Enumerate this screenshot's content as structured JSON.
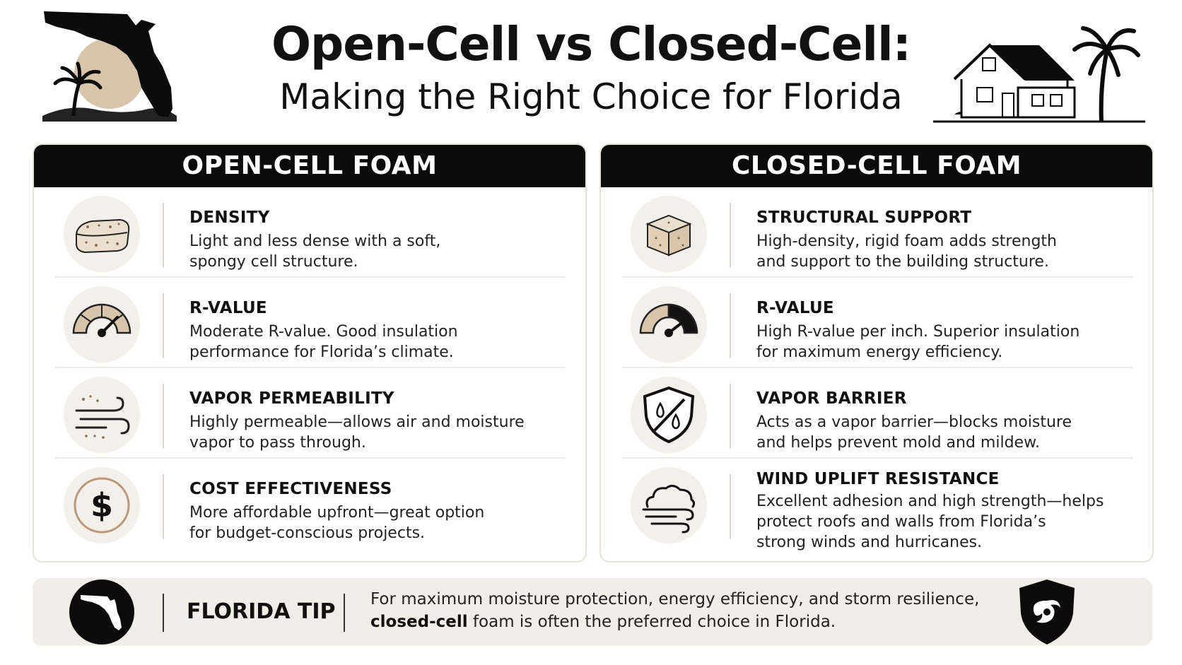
{
  "header": {
    "title": "Open-Cell vs Closed-Cell:",
    "subtitle": "Making the Right Choice for Florida"
  },
  "open_cell": {
    "heading": "OPEN-CELL FOAM",
    "items": [
      {
        "icon": "foam-block-icon",
        "title": "DENSITY",
        "desc_l1": "Light and less dense with a soft,",
        "desc_l2": "spongy cell structure."
      },
      {
        "icon": "gauge-moderate-icon",
        "title": "R-VALUE",
        "desc_l1": "Moderate R-value. Good insulation",
        "desc_l2": "performance for Florida’s climate."
      },
      {
        "icon": "airflow-icon",
        "title": "VAPOR PERMEABILITY",
        "desc_l1": "Highly permeable—allows air and moisture",
        "desc_l2": "vapor to pass through."
      },
      {
        "icon": "dollar-icon",
        "title": "COST EFFECTIVENESS",
        "desc_l1": "More affordable upfront—great option",
        "desc_l2": "for budget-conscious projects."
      }
    ]
  },
  "closed_cell": {
    "heading": "CLOSED-CELL FOAM",
    "items": [
      {
        "icon": "rigid-cube-icon",
        "title": "STRUCTURAL SUPPORT",
        "desc_l1": "High-density, rigid foam adds strength",
        "desc_l2": "and support to the building structure."
      },
      {
        "icon": "gauge-high-icon",
        "title": "R-VALUE",
        "desc_l1": "High R-value per inch. Superior insulation",
        "desc_l2": "for maximum energy efficiency."
      },
      {
        "icon": "shield-drops-icon",
        "title": "VAPOR BARRIER",
        "desc_l1": "Acts as a vapor barrier—blocks moisture",
        "desc_l2": "and helps prevent mold and mildew."
      },
      {
        "icon": "cloud-wind-icon",
        "title": "WIND UPLIFT RESISTANCE",
        "desc_l1": "Excellent adhesion and high strength—helps",
        "desc_l2": "protect roofs and walls from Florida’s",
        "desc_l3": "strong winds and hurricanes."
      }
    ]
  },
  "tip": {
    "label": "FLORIDA TIP",
    "line1": "For maximum moisture protection, energy efficiency, and storm resilience,",
    "line2_bold": "closed-cell",
    "line2_rest": " foam is often the preferred choice in Florida."
  },
  "colors": {
    "ink": "#0b0b0b",
    "beige": "#d8c4aa",
    "panel_border": "#e7e2da",
    "tip_bg": "#f1ede7"
  }
}
